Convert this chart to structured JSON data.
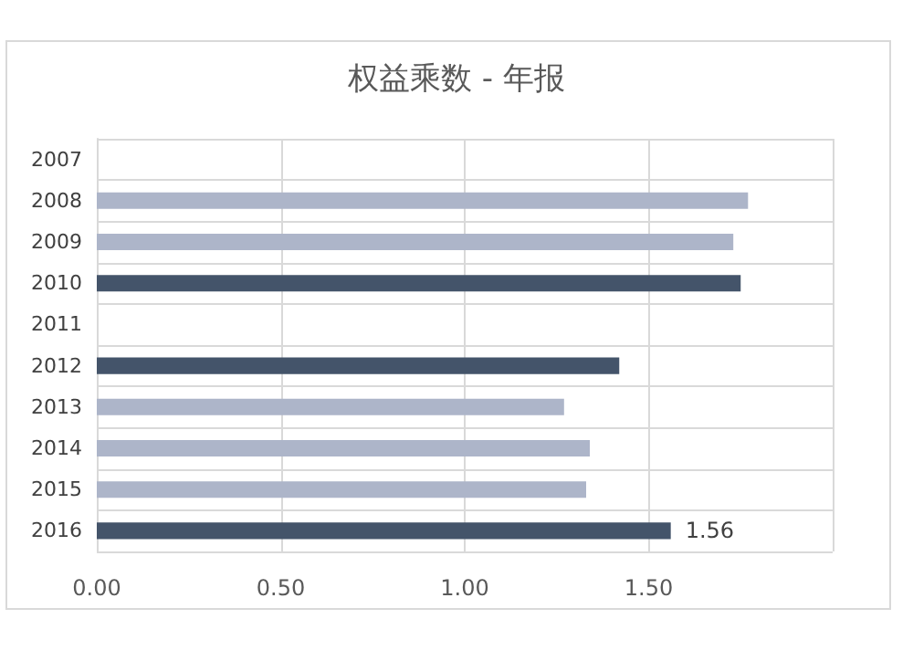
{
  "chart_data": {
    "type": "bar",
    "orientation": "horizontal",
    "title": "权益乘数 - 年报",
    "categories": [
      "2007",
      "2008",
      "2009",
      "2010",
      "2011",
      "2012",
      "2013",
      "2014",
      "2015",
      "2016"
    ],
    "values": [
      null,
      1.77,
      1.73,
      1.75,
      null,
      1.42,
      1.27,
      1.34,
      1.33,
      1.56
    ],
    "colors": [
      "#adb5c9",
      "#adb5c9",
      "#adb5c9",
      "#44546a",
      "#44546a",
      "#44546a",
      "#adb5c9",
      "#adb5c9",
      "#adb5c9",
      "#44546a"
    ],
    "value_labels": [
      null,
      null,
      null,
      null,
      null,
      null,
      null,
      null,
      null,
      "1.56"
    ],
    "xlim": [
      0,
      2
    ],
    "xticks": [
      {
        "value": 0,
        "label": "0.00"
      },
      {
        "value": 0.5,
        "label": "0.50"
      },
      {
        "value": 1,
        "label": "1.00"
      },
      {
        "value": 1.5,
        "label": "1.50"
      },
      {
        "value": 2,
        "label": null
      }
    ],
    "grid": true
  }
}
